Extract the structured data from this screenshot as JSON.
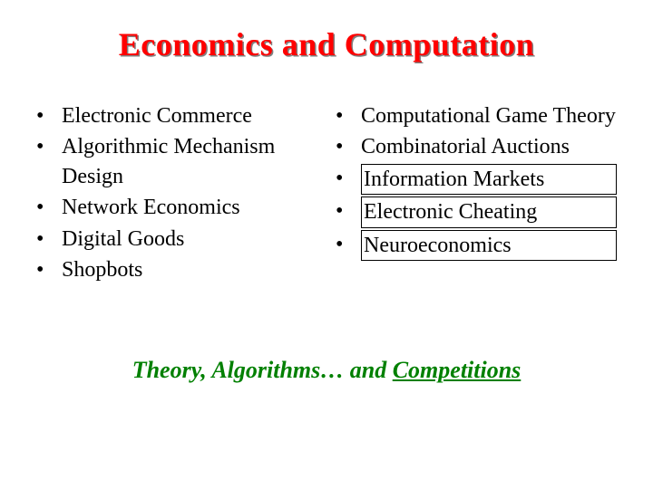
{
  "title": "Economics and Computation",
  "colors": {
    "title_color": "#ff0000",
    "title_shadow": "#808080",
    "body_text": "#000000",
    "footer_color": "#008000",
    "background": "#ffffff",
    "box_border": "#000000"
  },
  "typography": {
    "font_family": "Comic Sans MS",
    "title_fontsize": 36,
    "body_fontsize": 24,
    "footer_fontsize": 26,
    "title_weight": "bold",
    "footer_style": "italic bold"
  },
  "left_column": {
    "items": [
      {
        "text": "Electronic Commerce",
        "boxed": false
      },
      {
        "text": "Algorithmic Mechanism Design",
        "boxed": false
      },
      {
        "text": "Network Economics",
        "boxed": false
      },
      {
        "text": "Digital Goods",
        "boxed": false
      },
      {
        "text": "Shopbots",
        "boxed": false
      }
    ]
  },
  "right_column": {
    "items": [
      {
        "text": "Computational Game Theory",
        "boxed": false
      },
      {
        "text": "Combinatorial Auctions",
        "boxed": false
      },
      {
        "text": "Information Markets",
        "boxed": true
      },
      {
        "text": "Electronic Cheating",
        "boxed": true
      },
      {
        "text": "Neuroeconomics",
        "boxed": true
      }
    ]
  },
  "footer": {
    "prefix": "Theory, Algorithms… and ",
    "underlined": "Competitions"
  },
  "bullet_char": "•"
}
